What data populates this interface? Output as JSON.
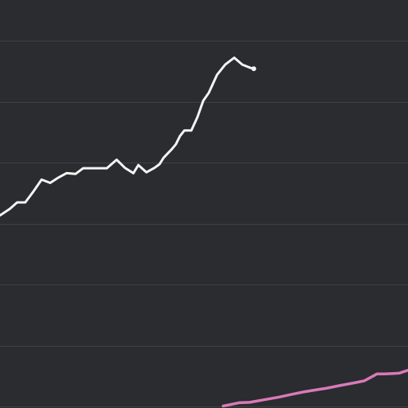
{
  "chart_data": {
    "type": "line",
    "background": "#2a2c30",
    "grid": true,
    "grid_color": "#3d4046",
    "xlim": [
      0,
      100
    ],
    "ylim": [
      0,
      100
    ],
    "gridlines_y": [
      0,
      15,
      30,
      45,
      60,
      75,
      90
    ],
    "series": [
      {
        "color": "#f4f4f4",
        "end_marker": true,
        "points": [
          [
            0,
            47.0
          ],
          [
            2.4,
            48.6
          ],
          [
            4.2,
            50.2
          ],
          [
            6.2,
            50.2
          ],
          [
            8.2,
            52.9
          ],
          [
            10.2,
            55.8
          ],
          [
            12.3,
            55.0
          ],
          [
            14.3,
            56.3
          ],
          [
            16.3,
            57.4
          ],
          [
            18.5,
            57.2
          ],
          [
            20.4,
            58.6
          ],
          [
            22.3,
            58.6
          ],
          [
            24.2,
            58.6
          ],
          [
            26.2,
            58.6
          ],
          [
            28.6,
            60.7
          ],
          [
            30.6,
            58.7
          ],
          [
            32.7,
            57.4
          ],
          [
            33.9,
            59.4
          ],
          [
            35.9,
            57.6
          ],
          [
            37.9,
            58.7
          ],
          [
            39.1,
            59.6
          ],
          [
            40.1,
            61.2
          ],
          [
            42.1,
            63.3
          ],
          [
            43.1,
            64.5
          ],
          [
            44.1,
            66.5
          ],
          [
            45.2,
            67.9
          ],
          [
            46.9,
            67.9
          ],
          [
            48.4,
            71.2
          ],
          [
            49.8,
            75.2
          ],
          [
            51.2,
            77.2
          ],
          [
            53.2,
            81.6
          ],
          [
            55.2,
            84.1
          ],
          [
            57.4,
            85.8
          ],
          [
            59.4,
            84.1
          ],
          [
            61.4,
            83.3
          ],
          [
            62.2,
            83.1
          ]
        ]
      },
      {
        "color": "#d97ab8",
        "end_marker": false,
        "points": [
          [
            54.7,
            0.1
          ],
          [
            56.2,
            0.4
          ],
          [
            58.6,
            0.9
          ],
          [
            61.2,
            1.0
          ],
          [
            65.1,
            1.7
          ],
          [
            68.4,
            2.3
          ],
          [
            71.2,
            2.9
          ],
          [
            74.1,
            3.5
          ],
          [
            77.0,
            4.0
          ],
          [
            80.1,
            4.5
          ],
          [
            83.1,
            5.1
          ],
          [
            86.9,
            5.8
          ],
          [
            89.3,
            6.3
          ],
          [
            91.3,
            7.4
          ],
          [
            92.4,
            8.0
          ],
          [
            94.2,
            8.0
          ],
          [
            96.3,
            8.1
          ],
          [
            97.9,
            8.2
          ],
          [
            100.0,
            8.9
          ]
        ]
      }
    ]
  }
}
